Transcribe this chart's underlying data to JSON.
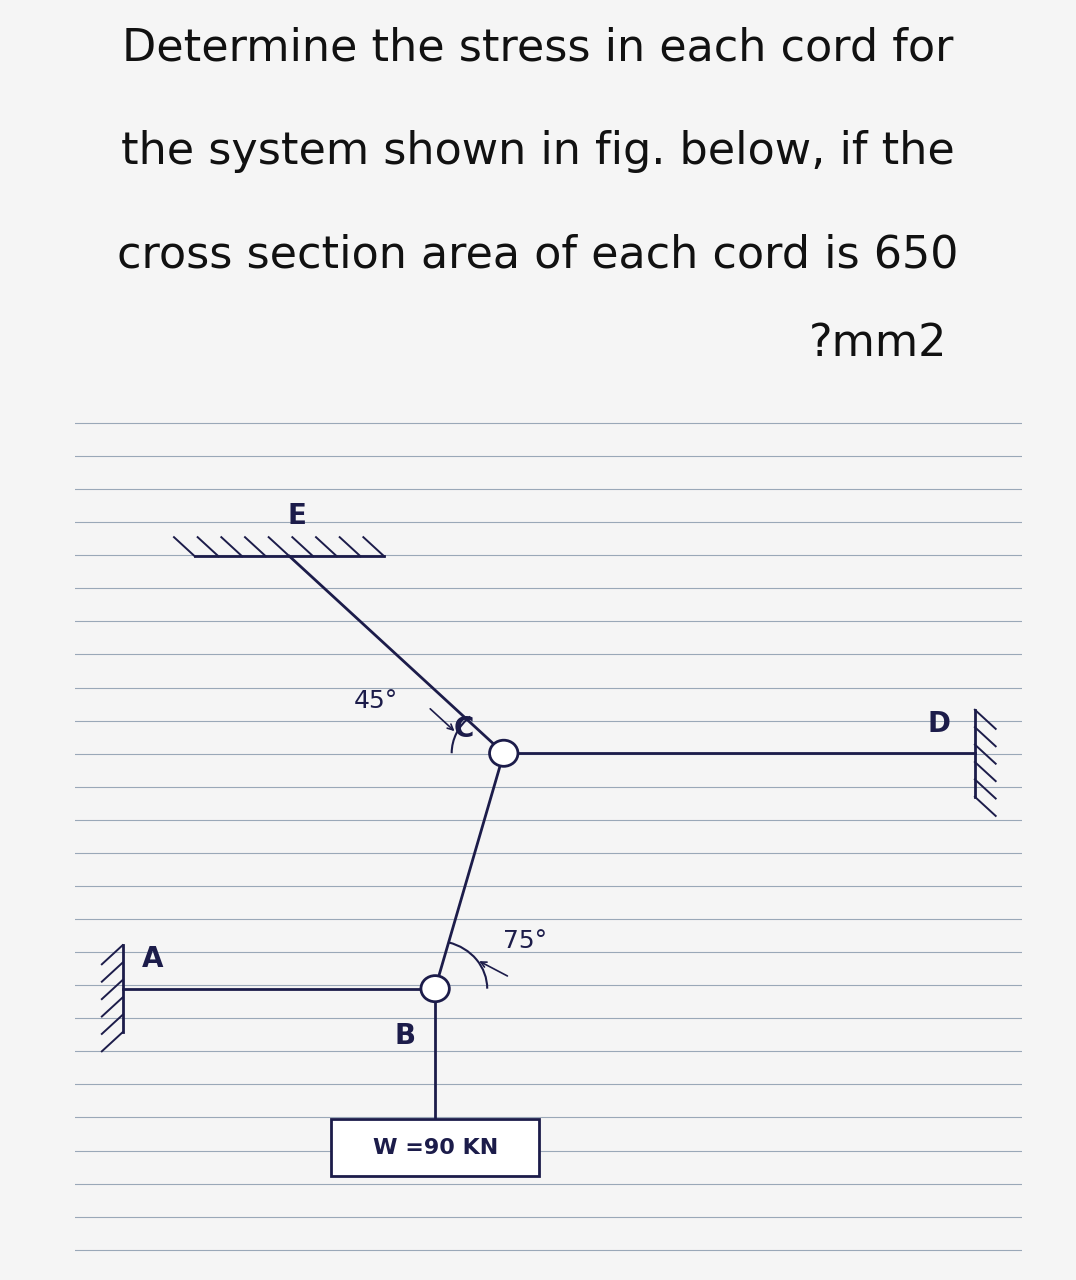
{
  "title_lines": [
    "Determine the stress in each cord for",
    "the system shown in fig. below, if the",
    "cross section area of each cord is 650",
    "?mm2"
  ],
  "title_fontsize": 32,
  "bg_color": "#f5f5f5",
  "diagram_bg": "#ccc9be",
  "line_color": "#1c1c4a",
  "weight_label": "W =90 KN",
  "angle_CE_label": "45°",
  "angle_BC_label": "75°",
  "label_fontsize": 20,
  "annotation_fontsize": 18,
  "hatch_color": "#1c1c4a"
}
